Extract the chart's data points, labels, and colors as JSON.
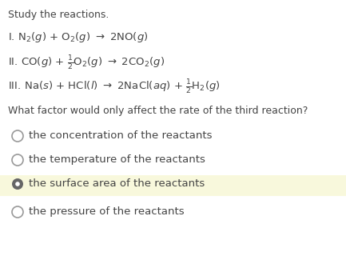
{
  "background_color": "#ffffff",
  "highlight_color": "#f8f8dc",
  "text_color": "#444444",
  "title": "Study the reactions.",
  "reaction1": "I. N$_2$($g$) + O$_2$($g$) $\\rightarrow$ 2NO($g$)",
  "reaction2": "II. CO($g$) + $\\frac{1}{2}$O$_2$($g$) $\\rightarrow$ 2CO$_2$($g$)",
  "reaction3": "III. Na($s$) + HCl($l$) $\\rightarrow$ 2NaCl($aq$) + $\\frac{1}{2}$H$_2$($g$)",
  "question": "What factor would only affect the rate of the third reaction?",
  "options": [
    "the concentration of the reactants",
    "the temperature of the reactants",
    "the surface area of the reactants",
    "the pressure of the reactants"
  ],
  "selected_index": 2,
  "circle_color_empty": "#999999",
  "circle_color_filled": "#666666",
  "font_size_title": 9,
  "font_size_reaction": 9.5,
  "font_size_question": 9,
  "font_size_option": 9.5
}
